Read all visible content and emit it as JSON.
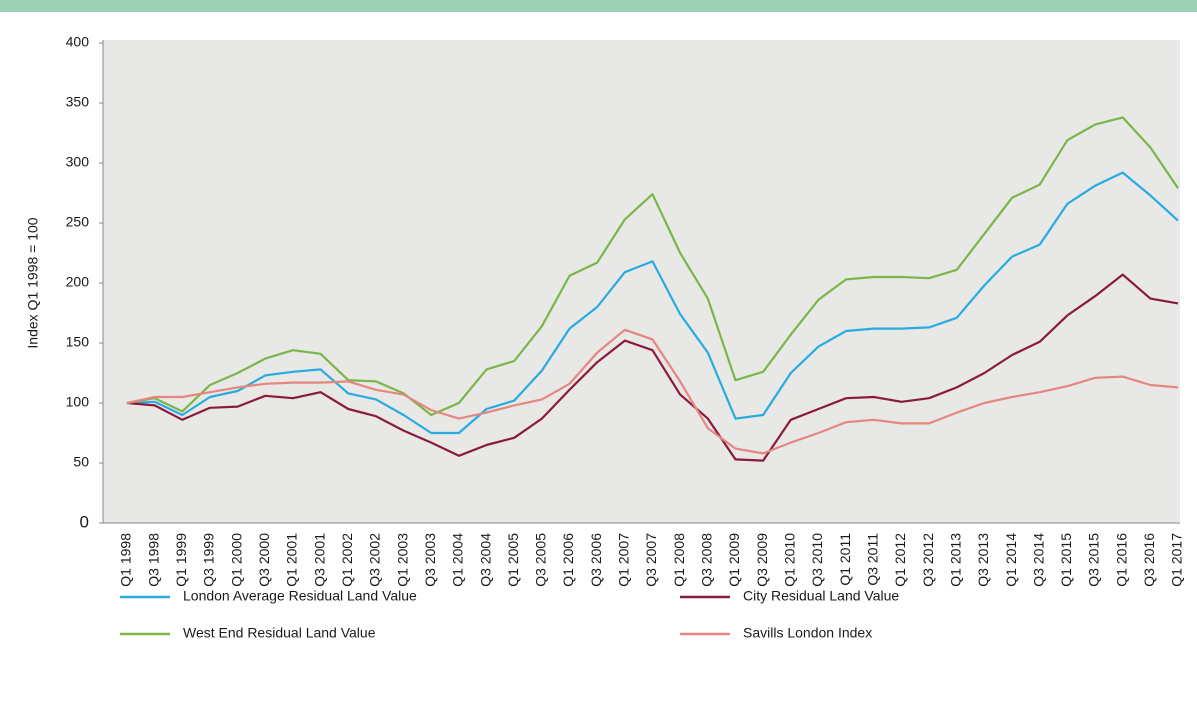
{
  "chart_data": {
    "type": "line",
    "y_label": "Index Q1 1998 = 100",
    "categories": [
      "Q1 1998",
      "Q3 1998",
      "Q1 1999",
      "Q3 1999",
      "Q1 2000",
      "Q3 2000",
      "Q1 2001",
      "Q3 2001",
      "Q1 2002",
      "Q3 2002",
      "Q1 2003",
      "Q3 2003",
      "Q1 2004",
      "Q3 2004",
      "Q1 2005",
      "Q3 2005",
      "Q1 2006",
      "Q3 2006",
      "Q1 2007",
      "Q3 2007",
      "Q1 2008",
      "Q3 2008",
      "Q1 2009",
      "Q3 2009",
      "Q1 2010",
      "Q3 2010",
      "Q1 2011",
      "Q3 2011",
      "Q1 2012",
      "Q3 2012",
      "Q1 2013",
      "Q3 2013",
      "Q1 2014",
      "Q3 2014",
      "Q1 2015",
      "Q3 2015",
      "Q1 2016",
      "Q3 2016",
      "Q1 2017"
    ],
    "series": [
      {
        "name": "London Average Residual Land Value",
        "color": "#29abe2",
        "values": [
          100,
          101,
          90,
          105,
          110,
          123,
          126,
          128,
          108,
          103,
          90,
          75,
          75,
          95,
          102,
          127,
          162,
          180,
          209,
          218,
          174,
          142,
          87,
          90,
          125,
          147,
          160,
          162,
          162,
          163,
          171,
          198,
          222,
          232,
          266,
          281,
          292,
          273,
          252
        ]
      },
      {
        "name": "City Residual Land Value",
        "color": "#8b1a3d",
        "values": [
          100,
          98,
          86,
          96,
          97,
          106,
          104,
          109,
          95,
          89,
          77,
          67,
          56,
          65,
          71,
          87,
          111,
          134,
          152,
          144,
          107,
          87,
          53,
          52,
          86,
          95,
          104,
          105,
          101,
          104,
          113,
          125,
          140,
          151,
          173,
          189,
          207,
          187,
          183
        ]
      },
      {
        "name": "West End Residual Land Value",
        "color": "#7ab648",
        "values": [
          100,
          104,
          93,
          115,
          125,
          137,
          144,
          141,
          119,
          118,
          108,
          90,
          100,
          128,
          135,
          164,
          206,
          217,
          253,
          274,
          225,
          187,
          119,
          126,
          157,
          186,
          203,
          205,
          205,
          204,
          211,
          241,
          271,
          282,
          319,
          332,
          338,
          313,
          279
        ]
      },
      {
        "name": "Savills London Index",
        "color": "#e6877f",
        "values": [
          100,
          105,
          105,
          109,
          113,
          116,
          117,
          117,
          118,
          111,
          107,
          94,
          87,
          92,
          98,
          103,
          116,
          142,
          161,
          153,
          118,
          79,
          62,
          58,
          67,
          75,
          84,
          86,
          83,
          83,
          92,
          100,
          105,
          109,
          114,
          121,
          122,
          115,
          113
        ]
      }
    ],
    "ylim": [
      0,
      400
    ],
    "yticks": [
      0,
      50,
      100,
      150,
      200,
      250,
      300,
      350,
      400
    ],
    "grid": false
  }
}
